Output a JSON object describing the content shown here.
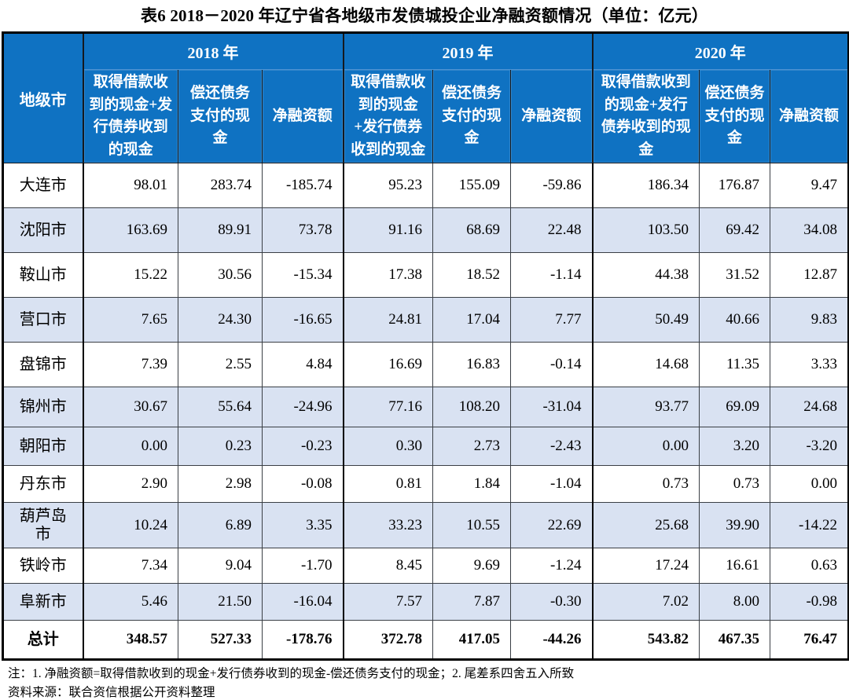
{
  "title": "表6  2018－2020 年辽宁省各地级市发债城投企业净融资额情况（单位：亿元）",
  "table": {
    "city_header": "地级市",
    "year_groups": [
      {
        "label": "2018 年",
        "columns": [
          "取得借款收到的现金+发行债券收到的现金",
          "偿还债务支付的现金",
          "净融资额"
        ]
      },
      {
        "label": "2019 年",
        "columns": [
          "取得借款收到的现金+发行债券收到的现金",
          "偿还债务支付的现金",
          "净融资额"
        ]
      },
      {
        "label": "2020 年",
        "columns": [
          "取得借款收到的现金+发行债券收到的现金",
          "偿还债务支付的现金",
          "净融资额"
        ]
      }
    ],
    "rows": [
      {
        "city": "大连市",
        "shaded": false,
        "values": [
          "98.01",
          "283.74",
          "-185.74",
          "95.23",
          "155.09",
          "-59.86",
          "186.34",
          "176.87",
          "9.47"
        ]
      },
      {
        "city": "沈阳市",
        "shaded": true,
        "values": [
          "163.69",
          "89.91",
          "73.78",
          "91.16",
          "68.69",
          "22.48",
          "103.50",
          "69.42",
          "34.08"
        ]
      },
      {
        "city": "鞍山市",
        "shaded": false,
        "values": [
          "15.22",
          "30.56",
          "-15.34",
          "17.38",
          "18.52",
          "-1.14",
          "44.38",
          "31.52",
          "12.87"
        ]
      },
      {
        "city": "营口市",
        "shaded": true,
        "values": [
          "7.65",
          "24.30",
          "-16.65",
          "24.81",
          "17.04",
          "7.77",
          "50.49",
          "40.66",
          "9.83"
        ]
      },
      {
        "city": "盘锦市",
        "shaded": false,
        "values": [
          "7.39",
          "2.55",
          "4.84",
          "16.69",
          "16.83",
          "-0.14",
          "14.68",
          "11.35",
          "3.33"
        ]
      },
      {
        "city": "锦州市",
        "shaded": true,
        "values": [
          "30.67",
          "55.64",
          "-24.96",
          "77.16",
          "108.20",
          "-31.04",
          "93.77",
          "69.09",
          "24.68"
        ]
      },
      {
        "city": "朝阳市",
        "shaded": true,
        "values": [
          "0.00",
          "0.23",
          "-0.23",
          "0.30",
          "2.73",
          "-2.43",
          "0.00",
          "3.20",
          "-3.20"
        ]
      },
      {
        "city": "丹东市",
        "shaded": false,
        "values": [
          "2.90",
          "2.98",
          "-0.08",
          "0.81",
          "1.84",
          "-1.04",
          "0.73",
          "0.73",
          "0.00"
        ]
      },
      {
        "city": "葫芦岛市",
        "shaded": true,
        "values": [
          "10.24",
          "6.89",
          "3.35",
          "33.23",
          "10.55",
          "22.69",
          "25.68",
          "39.90",
          "-14.22"
        ]
      },
      {
        "city": "铁岭市",
        "shaded": false,
        "values": [
          "7.34",
          "9.04",
          "-1.70",
          "8.45",
          "9.69",
          "-1.24",
          "17.24",
          "16.61",
          "0.63"
        ]
      },
      {
        "city": "阜新市",
        "shaded": true,
        "values": [
          "5.46",
          "21.50",
          "-16.04",
          "7.57",
          "7.87",
          "-0.30",
          "7.02",
          "8.00",
          "-0.98"
        ]
      }
    ],
    "total": {
      "city": "总计",
      "values": [
        "348.57",
        "527.33",
        "-178.76",
        "372.78",
        "417.05",
        "-44.26",
        "543.82",
        "467.35",
        "76.47"
      ]
    }
  },
  "notes": [
    "注：1. 净融资额=取得借款收到的现金+发行债券收到的现金-偿还债务支付的现金；2. 尾差系四舍五入所致",
    "资料来源：联合资信根据公开资料整理"
  ],
  "colors": {
    "header_blue": "#0f72c2",
    "shaded_row": "#d9e2f2",
    "header_text": "#ffffff",
    "body_text": "#000000"
  }
}
